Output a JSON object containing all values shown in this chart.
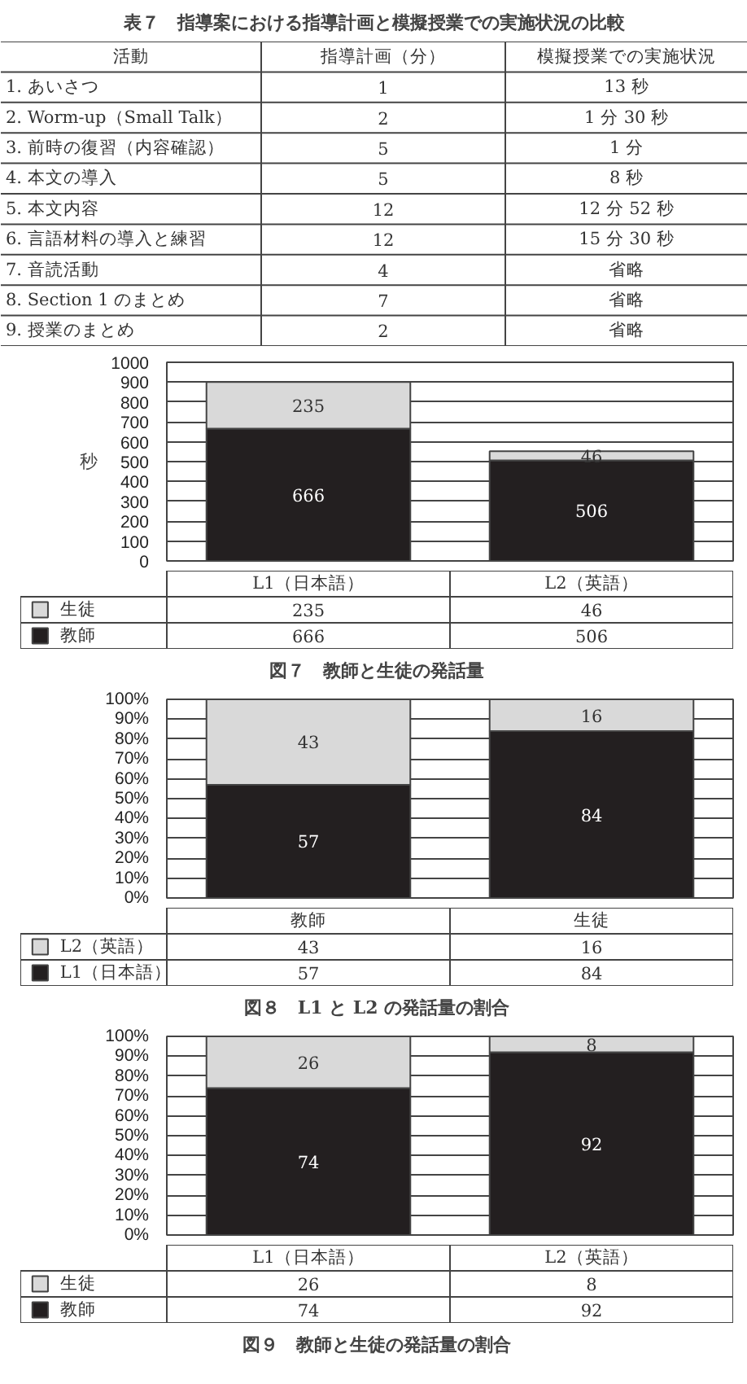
{
  "chart_data": [
    {
      "type": "other",
      "title": "表７　指導案における指導計画と模擬授業での実施状況の比較",
      "annotations": [
        "活動",
        "指導計画（分）",
        "模擬授業での実施状況",
        "1. あいさつ",
        "1",
        "13 秒",
        "2. Worm-up（Small Talk）",
        "2",
        "1 分 30 秒",
        "3. 前時の復習（内容確認）",
        "5",
        "1 分",
        "4. 本文の導入",
        "5",
        "8 秒",
        "5. 本文内容",
        "12",
        "12 分 52 秒",
        "6. 言語材料の導入と練習",
        "12",
        "15 分 30 秒",
        "7. 音読活動",
        "4",
        "省略",
        "8. Section 1 のまとめ",
        "7",
        "省略",
        "9. 授業のまとめ",
        "2",
        "省略"
      ]
    },
    {
      "type": "bar",
      "stacked": true,
      "title": "図７　教師と生徒の発話量",
      "ylabel": "秒",
      "categories": [
        "L1（日本語）",
        "L2（英語）"
      ],
      "series": [
        {
          "name": "教師",
          "color": "#231f20",
          "values": [
            666,
            506
          ]
        },
        {
          "name": "生徒",
          "color": "#d9d9d9",
          "values": [
            235,
            46
          ]
        }
      ],
      "annotations": [
        "235",
        "46",
        "666",
        "506"
      ],
      "ylim": [
        0,
        1000
      ],
      "yticks": [
        0,
        100,
        200,
        300,
        400,
        500,
        600,
        700,
        800,
        900,
        1000
      ],
      "grid": "y",
      "legend": "bottom left",
      "data_labels": true
    },
    {
      "type": "bar",
      "stacked": true,
      "title": "図８　L1 と L2 の発話量の割合",
      "categories": [
        "教師",
        "生徒"
      ],
      "series": [
        {
          "name": "L1（日本語）",
          "color": "#231f20",
          "values": [
            57,
            84
          ]
        },
        {
          "name": "L2（英語）",
          "color": "#d9d9d9",
          "values": [
            43,
            16
          ]
        }
      ],
      "annotations": [
        "43",
        "16",
        "57",
        "84"
      ],
      "ylim": [
        0,
        100
      ],
      "yticks": [
        {
          "value": 0,
          "label": "0%"
        },
        {
          "value": 10,
          "label": "10%"
        },
        {
          "value": 20,
          "label": "20%"
        },
        {
          "value": 30,
          "label": "30%"
        },
        {
          "value": 40,
          "label": "40%"
        },
        {
          "value": 50,
          "label": "50%"
        },
        {
          "value": 60,
          "label": "60%"
        },
        {
          "value": 70,
          "label": "70%"
        },
        {
          "value": 80,
          "label": "80%"
        },
        {
          "value": 90,
          "label": "90%"
        },
        {
          "value": 100,
          "label": "100%"
        }
      ],
      "grid": "y",
      "legend": "bottom left",
      "data_labels": true
    },
    {
      "type": "bar",
      "stacked": true,
      "title": "図９　教師と生徒の発話量の割合",
      "categories": [
        "L1（日本語）",
        "L2（英語）"
      ],
      "series": [
        {
          "name": "教師",
          "color": "#231f20",
          "values": [
            74,
            92
          ]
        },
        {
          "name": "生徒",
          "color": "#d9d9d9",
          "values": [
            26,
            8
          ]
        }
      ],
      "annotations": [
        "26",
        "8",
        "74",
        "92"
      ],
      "ylim": [
        0,
        100
      ],
      "yticks": [
        {
          "value": 0,
          "label": "0%"
        },
        {
          "value": 10,
          "label": "10%"
        },
        {
          "value": 20,
          "label": "20%"
        },
        {
          "value": 30,
          "label": "30%"
        },
        {
          "value": 40,
          "label": "40%"
        },
        {
          "value": 50,
          "label": "50%"
        },
        {
          "value": 60,
          "label": "60%"
        },
        {
          "value": 70,
          "label": "70%"
        },
        {
          "value": 80,
          "label": "80%"
        },
        {
          "value": 90,
          "label": "90%"
        },
        {
          "value": 100,
          "label": "100%"
        }
      ],
      "grid": "y",
      "legend": "bottom left",
      "data_labels": true
    }
  ]
}
